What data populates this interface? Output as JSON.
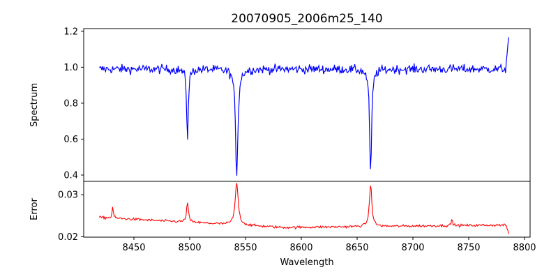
{
  "chart_data": [
    {
      "type": "line",
      "title": "20070905_2006m25_140",
      "xlabel": "",
      "ylabel": "Spectrum",
      "xlim": [
        8405,
        8805
      ],
      "ylim": [
        0.365,
        1.215
      ],
      "xticks": [
        8450,
        8500,
        8550,
        8600,
        8650,
        8700,
        8750,
        8800
      ],
      "yticks": [
        0.4,
        0.6,
        0.8,
        1.0,
        1.2
      ],
      "ytick_labels": [
        "0.4",
        "0.6",
        "0.8",
        "1.0",
        "1.2"
      ],
      "show_xtick_labels": false,
      "grid": false,
      "series": [
        {
          "color": "#0000ff",
          "continuum": 0.99,
          "noise": 0.025,
          "lines": [
            {
              "center": 8498.0,
              "depth": 0.38,
              "width": 0.9
            },
            {
              "center": 8542.1,
              "depth": 0.59,
              "width": 1.3
            },
            {
              "center": 8662.1,
              "depth": 0.58,
              "width": 1.1
            }
          ],
          "x_range": [
            8419,
            8786
          ],
          "end_rise": 1.18
        }
      ]
    },
    {
      "type": "line",
      "title": "",
      "xlabel": "Wavelength",
      "ylabel": "Error",
      "xlim": [
        8405,
        8805
      ],
      "ylim": [
        0.0199,
        0.0332
      ],
      "xticks": [
        8450,
        8500,
        8550,
        8600,
        8650,
        8700,
        8750,
        8800
      ],
      "xtick_labels": [
        "8450",
        "8500",
        "8550",
        "8600",
        "8650",
        "8700",
        "8750",
        "8800"
      ],
      "yticks": [
        0.02,
        0.03
      ],
      "ytick_labels": [
        "0.02",
        "0.03"
      ],
      "grid": false,
      "series": [
        {
          "color": "#ff0000",
          "baseline_start": 0.0246,
          "baseline_mid": 0.0222,
          "baseline_end": 0.0228,
          "noise": 0.0003,
          "lines": [
            {
              "center": 8431.0,
              "height": 0.0028,
              "width": 0.6
            },
            {
              "center": 8498.0,
              "height": 0.0047,
              "width": 1.0
            },
            {
              "center": 8542.1,
              "height": 0.0101,
              "width": 1.6
            },
            {
              "center": 8662.1,
              "height": 0.01,
              "width": 1.3
            },
            {
              "center": 8735.0,
              "height": 0.0015,
              "width": 0.7
            }
          ],
          "x_range": [
            8419,
            8786
          ],
          "end_drop": 0.0205
        }
      ]
    }
  ]
}
